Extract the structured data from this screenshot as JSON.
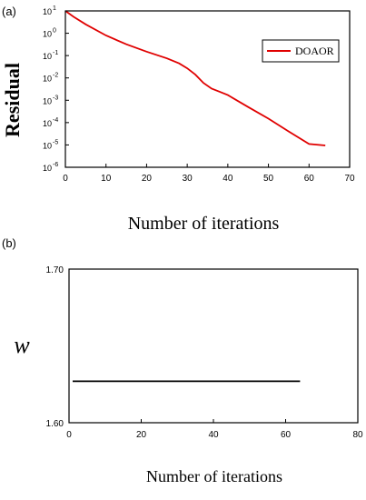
{
  "chart_data": [
    {
      "panel": "(a)",
      "type": "line",
      "xlabel": "Number of iterations",
      "ylabel": "Residual",
      "yscale": "log",
      "xlim": [
        0,
        70
      ],
      "ylim_exp": [
        -6,
        1
      ],
      "xticks": [
        "0",
        "10",
        "20",
        "30",
        "40",
        "50",
        "60",
        "70"
      ],
      "yticks": [
        "10",
        "10",
        "10",
        "10",
        "10",
        "10",
        "10",
        "10"
      ],
      "yticks_exp": [
        "1",
        "0",
        "-1",
        "-2",
        "-3",
        "-4",
        "-5",
        "-6"
      ],
      "legend_position": "top-right",
      "series": [
        {
          "name": "DOAOR",
          "color": "#e00000",
          "x": [
            0,
            2,
            5,
            10,
            15,
            20,
            25,
            28,
            30,
            32,
            34,
            36,
            38,
            40,
            45,
            50,
            55,
            60,
            64
          ],
          "y": [
            10,
            5.5,
            2.5,
            0.8,
            0.32,
            0.15,
            0.075,
            0.045,
            0.027,
            0.014,
            0.006,
            0.0033,
            0.0024,
            0.0017,
            0.0005,
            0.00015,
            4e-05,
            1.1e-05,
            9.5e-06
          ]
        }
      ]
    },
    {
      "panel": "(b)",
      "type": "line",
      "xlabel": "Number of iterations",
      "ylabel": "w",
      "xlim": [
        0,
        80
      ],
      "ylim": [
        1.6,
        1.7
      ],
      "xticks": [
        "0",
        "20",
        "40",
        "60",
        "80"
      ],
      "yticks": [
        "1.60",
        "1.70"
      ],
      "series": [
        {
          "color": "#000000",
          "x": [
            1,
            64
          ],
          "y": [
            1.627,
            1.627
          ]
        }
      ]
    }
  ]
}
